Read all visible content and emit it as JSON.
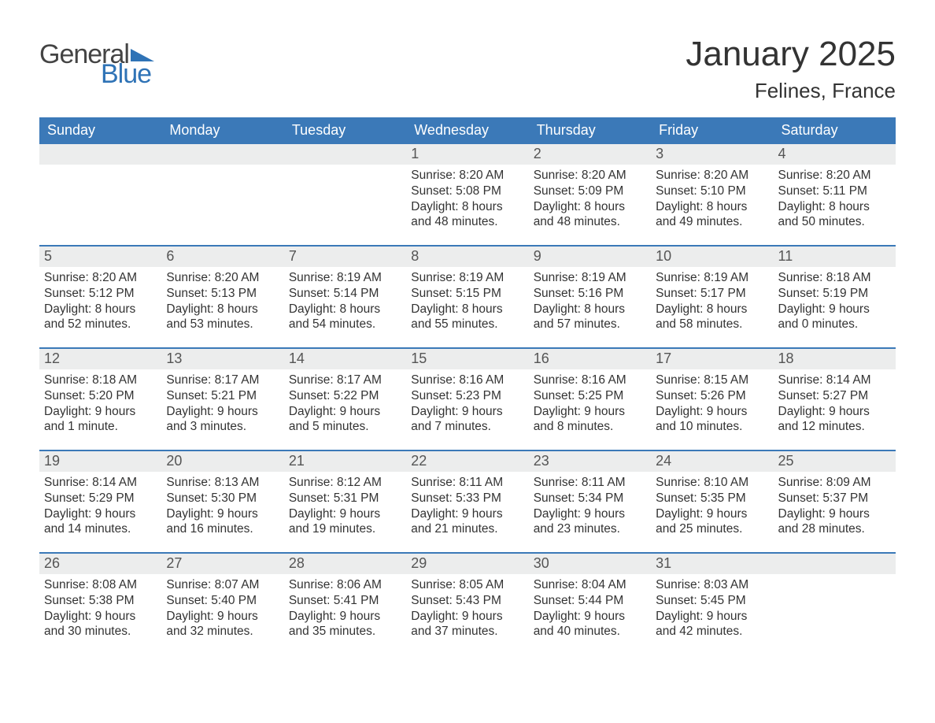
{
  "logo": {
    "word1": "General",
    "word2": "Blue",
    "flag_color": "#2f73b6"
  },
  "title": "January 2025",
  "location": "Felines, France",
  "colors": {
    "header_bg": "#3b79b8",
    "header_text": "#ffffff",
    "daynum_bg": "#eceded",
    "week_divider": "#3b79b8",
    "text": "#333333",
    "logo_gray": "#444444",
    "logo_blue": "#2f73b6",
    "page_bg": "#ffffff"
  },
  "days_of_week": [
    "Sunday",
    "Monday",
    "Tuesday",
    "Wednesday",
    "Thursday",
    "Friday",
    "Saturday"
  ],
  "weeks": [
    [
      null,
      null,
      null,
      {
        "n": "1",
        "sunrise": "Sunrise: 8:20 AM",
        "sunset": "Sunset: 5:08 PM",
        "day1": "Daylight: 8 hours",
        "day2": "and 48 minutes."
      },
      {
        "n": "2",
        "sunrise": "Sunrise: 8:20 AM",
        "sunset": "Sunset: 5:09 PM",
        "day1": "Daylight: 8 hours",
        "day2": "and 48 minutes."
      },
      {
        "n": "3",
        "sunrise": "Sunrise: 8:20 AM",
        "sunset": "Sunset: 5:10 PM",
        "day1": "Daylight: 8 hours",
        "day2": "and 49 minutes."
      },
      {
        "n": "4",
        "sunrise": "Sunrise: 8:20 AM",
        "sunset": "Sunset: 5:11 PM",
        "day1": "Daylight: 8 hours",
        "day2": "and 50 minutes."
      }
    ],
    [
      {
        "n": "5",
        "sunrise": "Sunrise: 8:20 AM",
        "sunset": "Sunset: 5:12 PM",
        "day1": "Daylight: 8 hours",
        "day2": "and 52 minutes."
      },
      {
        "n": "6",
        "sunrise": "Sunrise: 8:20 AM",
        "sunset": "Sunset: 5:13 PM",
        "day1": "Daylight: 8 hours",
        "day2": "and 53 minutes."
      },
      {
        "n": "7",
        "sunrise": "Sunrise: 8:19 AM",
        "sunset": "Sunset: 5:14 PM",
        "day1": "Daylight: 8 hours",
        "day2": "and 54 minutes."
      },
      {
        "n": "8",
        "sunrise": "Sunrise: 8:19 AM",
        "sunset": "Sunset: 5:15 PM",
        "day1": "Daylight: 8 hours",
        "day2": "and 55 minutes."
      },
      {
        "n": "9",
        "sunrise": "Sunrise: 8:19 AM",
        "sunset": "Sunset: 5:16 PM",
        "day1": "Daylight: 8 hours",
        "day2": "and 57 minutes."
      },
      {
        "n": "10",
        "sunrise": "Sunrise: 8:19 AM",
        "sunset": "Sunset: 5:17 PM",
        "day1": "Daylight: 8 hours",
        "day2": "and 58 minutes."
      },
      {
        "n": "11",
        "sunrise": "Sunrise: 8:18 AM",
        "sunset": "Sunset: 5:19 PM",
        "day1": "Daylight: 9 hours",
        "day2": "and 0 minutes."
      }
    ],
    [
      {
        "n": "12",
        "sunrise": "Sunrise: 8:18 AM",
        "sunset": "Sunset: 5:20 PM",
        "day1": "Daylight: 9 hours",
        "day2": "and 1 minute."
      },
      {
        "n": "13",
        "sunrise": "Sunrise: 8:17 AM",
        "sunset": "Sunset: 5:21 PM",
        "day1": "Daylight: 9 hours",
        "day2": "and 3 minutes."
      },
      {
        "n": "14",
        "sunrise": "Sunrise: 8:17 AM",
        "sunset": "Sunset: 5:22 PM",
        "day1": "Daylight: 9 hours",
        "day2": "and 5 minutes."
      },
      {
        "n": "15",
        "sunrise": "Sunrise: 8:16 AM",
        "sunset": "Sunset: 5:23 PM",
        "day1": "Daylight: 9 hours",
        "day2": "and 7 minutes."
      },
      {
        "n": "16",
        "sunrise": "Sunrise: 8:16 AM",
        "sunset": "Sunset: 5:25 PM",
        "day1": "Daylight: 9 hours",
        "day2": "and 8 minutes."
      },
      {
        "n": "17",
        "sunrise": "Sunrise: 8:15 AM",
        "sunset": "Sunset: 5:26 PM",
        "day1": "Daylight: 9 hours",
        "day2": "and 10 minutes."
      },
      {
        "n": "18",
        "sunrise": "Sunrise: 8:14 AM",
        "sunset": "Sunset: 5:27 PM",
        "day1": "Daylight: 9 hours",
        "day2": "and 12 minutes."
      }
    ],
    [
      {
        "n": "19",
        "sunrise": "Sunrise: 8:14 AM",
        "sunset": "Sunset: 5:29 PM",
        "day1": "Daylight: 9 hours",
        "day2": "and 14 minutes."
      },
      {
        "n": "20",
        "sunrise": "Sunrise: 8:13 AM",
        "sunset": "Sunset: 5:30 PM",
        "day1": "Daylight: 9 hours",
        "day2": "and 16 minutes."
      },
      {
        "n": "21",
        "sunrise": "Sunrise: 8:12 AM",
        "sunset": "Sunset: 5:31 PM",
        "day1": "Daylight: 9 hours",
        "day2": "and 19 minutes."
      },
      {
        "n": "22",
        "sunrise": "Sunrise: 8:11 AM",
        "sunset": "Sunset: 5:33 PM",
        "day1": "Daylight: 9 hours",
        "day2": "and 21 minutes."
      },
      {
        "n": "23",
        "sunrise": "Sunrise: 8:11 AM",
        "sunset": "Sunset: 5:34 PM",
        "day1": "Daylight: 9 hours",
        "day2": "and 23 minutes."
      },
      {
        "n": "24",
        "sunrise": "Sunrise: 8:10 AM",
        "sunset": "Sunset: 5:35 PM",
        "day1": "Daylight: 9 hours",
        "day2": "and 25 minutes."
      },
      {
        "n": "25",
        "sunrise": "Sunrise: 8:09 AM",
        "sunset": "Sunset: 5:37 PM",
        "day1": "Daylight: 9 hours",
        "day2": "and 28 minutes."
      }
    ],
    [
      {
        "n": "26",
        "sunrise": "Sunrise: 8:08 AM",
        "sunset": "Sunset: 5:38 PM",
        "day1": "Daylight: 9 hours",
        "day2": "and 30 minutes."
      },
      {
        "n": "27",
        "sunrise": "Sunrise: 8:07 AM",
        "sunset": "Sunset: 5:40 PM",
        "day1": "Daylight: 9 hours",
        "day2": "and 32 minutes."
      },
      {
        "n": "28",
        "sunrise": "Sunrise: 8:06 AM",
        "sunset": "Sunset: 5:41 PM",
        "day1": "Daylight: 9 hours",
        "day2": "and 35 minutes."
      },
      {
        "n": "29",
        "sunrise": "Sunrise: 8:05 AM",
        "sunset": "Sunset: 5:43 PM",
        "day1": "Daylight: 9 hours",
        "day2": "and 37 minutes."
      },
      {
        "n": "30",
        "sunrise": "Sunrise: 8:04 AM",
        "sunset": "Sunset: 5:44 PM",
        "day1": "Daylight: 9 hours",
        "day2": "and 40 minutes."
      },
      {
        "n": "31",
        "sunrise": "Sunrise: 8:03 AM",
        "sunset": "Sunset: 5:45 PM",
        "day1": "Daylight: 9 hours",
        "day2": "and 42 minutes."
      },
      null
    ]
  ]
}
